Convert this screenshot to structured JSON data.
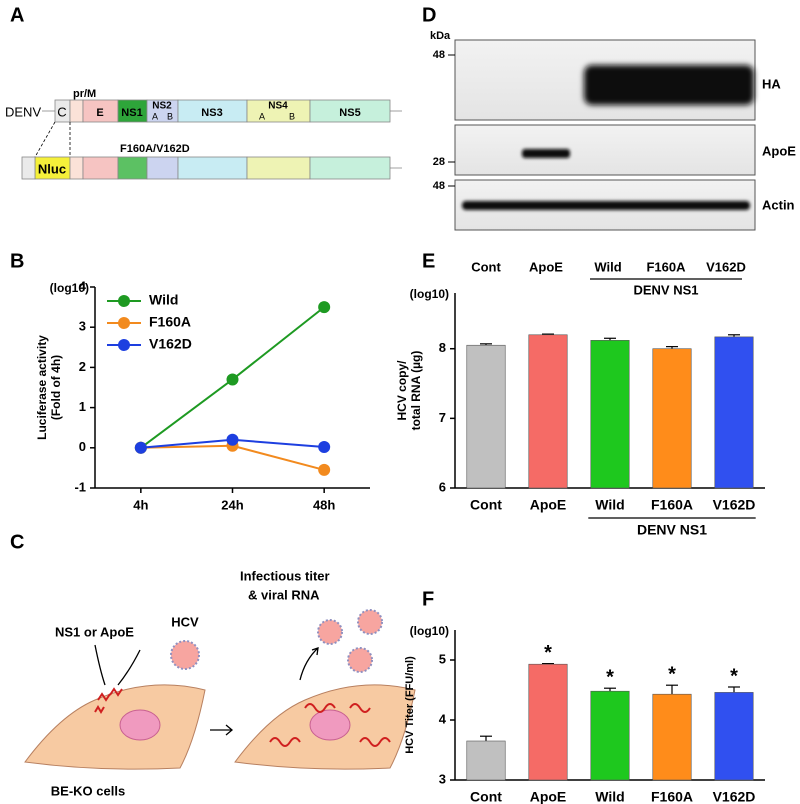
{
  "panel_labels": [
    "A",
    "B",
    "C",
    "D",
    "E",
    "F"
  ],
  "genome": {
    "name": "DENV",
    "prm": "pr/M",
    "segments": [
      "C",
      "E",
      "NS1",
      "NS2",
      "NS3",
      "NS4",
      "NS5"
    ],
    "ns2_sub": [
      "A",
      "B"
    ],
    "ns4_sub": [
      "A",
      "B"
    ],
    "reporter": "Nluc",
    "mutation": "F160A/V162D"
  },
  "schematic": {
    "treatment": "NS1 or ApoE",
    "virus": "HCV",
    "readout": [
      "Infectious titer",
      "& viral RNA"
    ],
    "cells": "BE-KO cells"
  },
  "blot": {
    "unit": "kDa",
    "markers": [
      48,
      28,
      48
    ],
    "bands": [
      "HA",
      "ApoE",
      "Actin"
    ],
    "lanes": [
      "Cont",
      "ApoE",
      "Wild",
      "F160A",
      "V162D"
    ],
    "group_label": "DENV NS1"
  },
  "chart_data": [
    {
      "type": "line",
      "ylabel": [
        "Luciferase activity",
        "(Fold of 4h)"
      ],
      "yunit": "(log10)",
      "categories": [
        "4h",
        "24h",
        "48h"
      ],
      "series": [
        {
          "name": "Wild",
          "color": "#1e9a22",
          "values": [
            0,
            1.7,
            3.5
          ]
        },
        {
          "name": "F160A",
          "color": "#f28a1e",
          "values": [
            0,
            0.05,
            -0.55
          ]
        },
        {
          "name": "V162D",
          "color": "#1d3fe0",
          "values": [
            0,
            0.2,
            0.02
          ]
        }
      ],
      "ylim": [
        -1,
        4
      ],
      "yticks": [
        -1,
        0,
        1,
        2,
        3,
        4
      ],
      "legend": "upper left"
    },
    {
      "type": "bar",
      "ylabel": [
        "HCV copy/",
        "total RNA (µg)"
      ],
      "yunit": "(log10)",
      "categories": [
        "Cont",
        "ApoE",
        "Wild",
        "F160A",
        "V162D"
      ],
      "group_label": "DENV NS1",
      "values": [
        8.05,
        8.2,
        8.12,
        8.0,
        8.17
      ],
      "errors": [
        0.02,
        0.01,
        0.03,
        0.03,
        0.03
      ],
      "colors": [
        "#c0c0c0",
        "#f56b66",
        "#1ec81e",
        "#ff8c1a",
        "#3050f0"
      ],
      "ylim": [
        6,
        8.8
      ],
      "yticks": [
        6,
        7,
        8
      ]
    },
    {
      "type": "bar",
      "ylabel": [
        "HCV Titer (FFU/ml)"
      ],
      "yunit": "(log10)",
      "categories": [
        "Cont",
        "ApoE",
        "Wild",
        "F160A",
        "V162D"
      ],
      "group_label": "DENV NS1",
      "values": [
        3.65,
        4.93,
        4.48,
        4.43,
        4.46
      ],
      "errors": [
        0.08,
        0.01,
        0.05,
        0.15,
        0.09
      ],
      "significance": [
        null,
        "*",
        "*",
        "*",
        "*"
      ],
      "colors": [
        "#c0c0c0",
        "#f56b66",
        "#1ec81e",
        "#ff8c1a",
        "#3050f0"
      ],
      "ylim": [
        3,
        5.5
      ],
      "yticks": [
        3,
        4,
        5
      ]
    }
  ]
}
